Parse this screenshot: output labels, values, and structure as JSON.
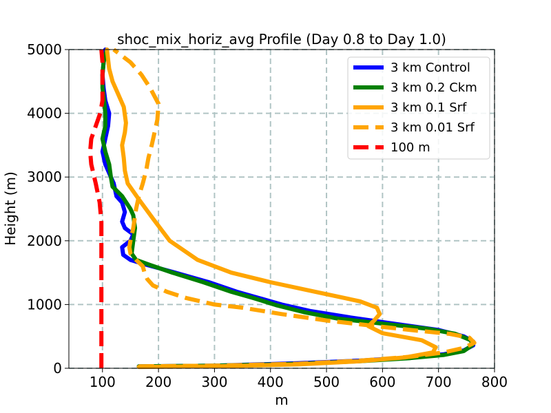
{
  "chart_data": {
    "type": "line",
    "title": "shoc_mix_horiz_avg Profile (Day 0.8 to Day 1.0)",
    "xlabel": "m",
    "ylabel": "Height (m)",
    "xlim": [
      40,
      800
    ],
    "ylim": [
      0,
      5000
    ],
    "xticks": [
      100,
      200,
      300,
      400,
      500,
      600,
      700,
      800
    ],
    "yticks": [
      0,
      1000,
      2000,
      3000,
      4000,
      5000
    ],
    "grid": true,
    "legend_position": "top-right",
    "series": [
      {
        "name": "3 km Control",
        "color": "#0000ff",
        "dash": "solid",
        "points": [
          [
            165,
            30
          ],
          [
            300,
            40
          ],
          [
            450,
            80
          ],
          [
            560,
            120
          ],
          [
            650,
            170
          ],
          [
            710,
            220
          ],
          [
            745,
            280
          ],
          [
            762,
            360
          ],
          [
            762,
            420
          ],
          [
            745,
            500
          ],
          [
            700,
            600
          ],
          [
            620,
            700
          ],
          [
            540,
            800
          ],
          [
            470,
            900
          ],
          [
            420,
            1000
          ],
          [
            380,
            1100
          ],
          [
            340,
            1200
          ],
          [
            290,
            1350
          ],
          [
            230,
            1500
          ],
          [
            180,
            1620
          ],
          [
            150,
            1700
          ],
          [
            137,
            1780
          ],
          [
            135,
            1900
          ],
          [
            150,
            2000
          ],
          [
            155,
            2100
          ],
          [
            140,
            2200
          ],
          [
            135,
            2300
          ],
          [
            140,
            2450
          ],
          [
            135,
            2600
          ],
          [
            125,
            2700
          ],
          [
            120,
            2900
          ],
          [
            115,
            3000
          ],
          [
            105,
            3200
          ],
          [
            100,
            3400
          ],
          [
            105,
            3600
          ],
          [
            110,
            3800
          ],
          [
            112,
            4000
          ],
          [
            105,
            4200
          ],
          [
            102,
            4400
          ],
          [
            100,
            4600
          ],
          [
            102,
            4800
          ],
          [
            105,
            5000
          ]
        ]
      },
      {
        "name": "3 km 0.2 Ckm",
        "color": "#008000",
        "dash": "solid",
        "points": [
          [
            165,
            30
          ],
          [
            300,
            40
          ],
          [
            450,
            70
          ],
          [
            560,
            110
          ],
          [
            650,
            160
          ],
          [
            710,
            210
          ],
          [
            745,
            270
          ],
          [
            760,
            360
          ],
          [
            758,
            440
          ],
          [
            730,
            540
          ],
          [
            680,
            620
          ],
          [
            600,
            700
          ],
          [
            520,
            780
          ],
          [
            460,
            880
          ],
          [
            410,
            990
          ],
          [
            370,
            1100
          ],
          [
            330,
            1200
          ],
          [
            280,
            1350
          ],
          [
            225,
            1500
          ],
          [
            185,
            1620
          ],
          [
            160,
            1700
          ],
          [
            152,
            1800
          ],
          [
            155,
            2000
          ],
          [
            158,
            2200
          ],
          [
            155,
            2400
          ],
          [
            150,
            2500
          ],
          [
            135,
            2700
          ],
          [
            118,
            2850
          ],
          [
            115,
            3000
          ],
          [
            112,
            3200
          ],
          [
            105,
            3400
          ],
          [
            100,
            3600
          ],
          [
            105,
            3800
          ],
          [
            105,
            4000
          ],
          [
            103,
            4200
          ],
          [
            100,
            4400
          ],
          [
            100,
            4600
          ],
          [
            102,
            4800
          ],
          [
            108,
            5000
          ]
        ]
      },
      {
        "name": "3 km 0.1 Srf",
        "color": "#ffa500",
        "dash": "solid",
        "points": [
          [
            165,
            20
          ],
          [
            300,
            30
          ],
          [
            450,
            60
          ],
          [
            560,
            110
          ],
          [
            640,
            170
          ],
          [
            690,
            250
          ],
          [
            695,
            330
          ],
          [
            670,
            440
          ],
          [
            600,
            550
          ],
          [
            575,
            660
          ],
          [
            585,
            750
          ],
          [
            595,
            850
          ],
          [
            590,
            950
          ],
          [
            560,
            1050
          ],
          [
            480,
            1200
          ],
          [
            400,
            1350
          ],
          [
            330,
            1500
          ],
          [
            270,
            1700
          ],
          [
            220,
            2000
          ],
          [
            190,
            2350
          ],
          [
            165,
            2650
          ],
          [
            145,
            2900
          ],
          [
            140,
            3100
          ],
          [
            138,
            3300
          ],
          [
            135,
            3500
          ],
          [
            140,
            3700
          ],
          [
            142,
            3850
          ],
          [
            138,
            4100
          ],
          [
            128,
            4300
          ],
          [
            118,
            4500
          ],
          [
            112,
            4700
          ],
          [
            108,
            5000
          ]
        ]
      },
      {
        "name": "3 km 0.01 Srf",
        "color": "#ffa500",
        "dash": "dashed",
        "points": [
          [
            165,
            30
          ],
          [
            300,
            40
          ],
          [
            450,
            70
          ],
          [
            560,
            120
          ],
          [
            650,
            180
          ],
          [
            710,
            250
          ],
          [
            745,
            320
          ],
          [
            764,
            400
          ],
          [
            755,
            480
          ],
          [
            720,
            540
          ],
          [
            650,
            600
          ],
          [
            580,
            670
          ],
          [
            500,
            750
          ],
          [
            420,
            850
          ],
          [
            350,
            950
          ],
          [
            300,
            1000
          ],
          [
            250,
            1100
          ],
          [
            215,
            1200
          ],
          [
            190,
            1300
          ],
          [
            180,
            1400
          ],
          [
            175,
            1500
          ],
          [
            172,
            1600
          ],
          [
            160,
            1700
          ],
          [
            150,
            1800
          ],
          [
            148,
            1900
          ],
          [
            150,
            2000
          ],
          [
            155,
            2200
          ],
          [
            160,
            2500
          ],
          [
            165,
            2700
          ],
          [
            172,
            2900
          ],
          [
            178,
            3100
          ],
          [
            182,
            3300
          ],
          [
            188,
            3500
          ],
          [
            193,
            3700
          ],
          [
            198,
            3900
          ],
          [
            200,
            4150
          ],
          [
            185,
            4400
          ],
          [
            170,
            4600
          ],
          [
            150,
            4800
          ],
          [
            120,
            5000
          ]
        ]
      },
      {
        "name": "100 m",
        "color": "#ff0000",
        "dash": "dashed",
        "points": [
          [
            98,
            0
          ],
          [
            98,
            500
          ],
          [
            98,
            1000
          ],
          [
            98,
            1500
          ],
          [
            98,
            2000
          ],
          [
            98,
            2300
          ],
          [
            95,
            2600
          ],
          [
            88,
            2900
          ],
          [
            80,
            3200
          ],
          [
            78,
            3400
          ],
          [
            80,
            3600
          ],
          [
            88,
            3800
          ],
          [
            96,
            4000
          ],
          [
            100,
            4200
          ],
          [
            100,
            4500
          ],
          [
            100,
            4800
          ],
          [
            98,
            5000
          ]
        ]
      }
    ]
  }
}
